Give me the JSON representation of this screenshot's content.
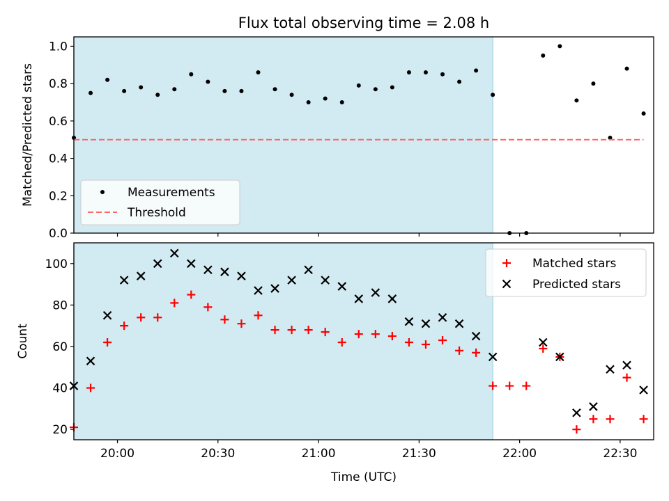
{
  "title": "Flux total observing time = 2.08 h",
  "colors": {
    "shade": "#add8e6",
    "measurement": "#000000",
    "threshold": "#ff6666",
    "matched": "#ff0000",
    "predicted": "#000000"
  },
  "chart_data": [
    {
      "type": "scatter",
      "panel": "top",
      "ylabel": "Matched/Predicted stars",
      "ylim": [
        0,
        1.05
      ],
      "yticks": [
        0.0,
        0.2,
        0.4,
        0.6,
        0.8,
        1.0
      ],
      "ytick_labels": [
        "0.0",
        "0.2",
        "0.4",
        "0.6",
        "0.8",
        "1.0"
      ],
      "xlim": [
        "19:47",
        "22:40"
      ],
      "shaded_interval": [
        "19:47",
        "21:52"
      ],
      "legend": {
        "position": "lower-left",
        "entries": [
          "Measurements",
          "Threshold"
        ]
      },
      "series": [
        {
          "name": "Measurements",
          "marker": "dot",
          "x": [
            "19:47",
            "19:52",
            "19:57",
            "20:02",
            "20:07",
            "20:12",
            "20:17",
            "20:22",
            "20:27",
            "20:32",
            "20:37",
            "20:42",
            "20:47",
            "20:52",
            "20:57",
            "21:02",
            "21:07",
            "21:12",
            "21:17",
            "21:22",
            "21:27",
            "21:32",
            "21:37",
            "21:42",
            "21:47",
            "21:52",
            "21:57",
            "22:02",
            "22:07",
            "22:12",
            "22:17",
            "22:22",
            "22:27",
            "22:32",
            "22:37"
          ],
          "y": [
            0.51,
            0.75,
            0.82,
            0.76,
            0.78,
            0.74,
            0.77,
            0.85,
            0.81,
            0.76,
            0.76,
            0.86,
            0.77,
            0.74,
            0.7,
            0.72,
            0.7,
            0.79,
            0.77,
            0.78,
            0.86,
            0.86,
            0.85,
            0.81,
            0.87,
            0.74,
            0.0,
            0.0,
            0.95,
            1.0,
            0.71,
            0.8,
            0.51,
            0.88,
            0.64
          ]
        },
        {
          "name": "Threshold",
          "style": "dashed",
          "x": [
            "19:47",
            "22:37"
          ],
          "y": [
            0.5,
            0.5
          ]
        }
      ]
    },
    {
      "type": "scatter",
      "panel": "bottom",
      "xlabel": "Time (UTC)",
      "ylabel": "Count",
      "ylim": [
        15,
        110
      ],
      "yticks": [
        20,
        40,
        60,
        80,
        100
      ],
      "ytick_labels": [
        "20",
        "40",
        "60",
        "80",
        "100"
      ],
      "xlim": [
        "19:47",
        "22:40"
      ],
      "xticks": [
        "20:00",
        "20:30",
        "21:00",
        "21:30",
        "22:00",
        "22:30"
      ],
      "shaded_interval": [
        "19:47",
        "21:52"
      ],
      "legend": {
        "position": "top-right",
        "entries": [
          "Matched stars",
          "Predicted stars"
        ]
      },
      "series": [
        {
          "name": "Matched stars",
          "marker": "plus",
          "x": [
            "19:47",
            "19:52",
            "19:57",
            "20:02",
            "20:07",
            "20:12",
            "20:17",
            "20:22",
            "20:27",
            "20:32",
            "20:37",
            "20:42",
            "20:47",
            "20:52",
            "20:57",
            "21:02",
            "21:07",
            "21:12",
            "21:17",
            "21:22",
            "21:27",
            "21:32",
            "21:37",
            "21:42",
            "21:47",
            "21:52",
            "21:57",
            "22:02",
            "22:07",
            "22:12",
            "22:17",
            "22:22",
            "22:27",
            "22:32",
            "22:37"
          ],
          "y": [
            21,
            40,
            62,
            70,
            74,
            74,
            81,
            85,
            79,
            73,
            71,
            75,
            68,
            68,
            68,
            67,
            62,
            66,
            66,
            65,
            62,
            61,
            63,
            58,
            57,
            41,
            41,
            41,
            59,
            55,
            20,
            25,
            25,
            45,
            25
          ]
        },
        {
          "name": "Predicted stars",
          "marker": "x",
          "x": [
            "19:47",
            "19:52",
            "19:57",
            "20:02",
            "20:07",
            "20:12",
            "20:17",
            "20:22",
            "20:27",
            "20:32",
            "20:37",
            "20:42",
            "20:47",
            "20:52",
            "20:57",
            "21:02",
            "21:07",
            "21:12",
            "21:17",
            "21:22",
            "21:27",
            "21:32",
            "21:37",
            "21:42",
            "21:47",
            "21:52",
            "22:07",
            "22:12",
            "22:17",
            "22:22",
            "22:27",
            "22:32",
            "22:37"
          ],
          "y": [
            41,
            53,
            75,
            92,
            94,
            100,
            105,
            100,
            97,
            96,
            94,
            87,
            88,
            92,
            97,
            92,
            89,
            83,
            86,
            83,
            72,
            71,
            74,
            71,
            65,
            55,
            62,
            55,
            28,
            31,
            49,
            51,
            39
          ]
        }
      ]
    }
  ]
}
